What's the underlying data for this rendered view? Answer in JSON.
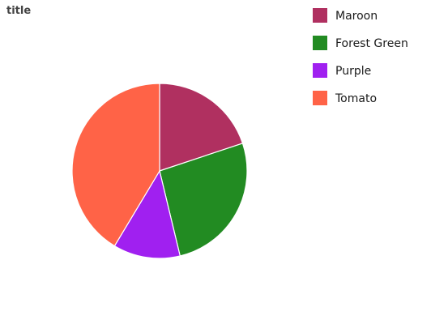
{
  "chart_data": {
    "type": "pie",
    "title": "title",
    "slices": [
      {
        "label": "Maroon",
        "value": 18.5,
        "color": "#B03060"
      },
      {
        "label": "Forest Green",
        "value": 24.5,
        "color": "#228B22"
      },
      {
        "label": "Purple",
        "value": 11.5,
        "color": "#A020F0"
      },
      {
        "label": "Tomato",
        "value": 38.5,
        "color": "#FF6347"
      }
    ],
    "legend_position": "right"
  }
}
